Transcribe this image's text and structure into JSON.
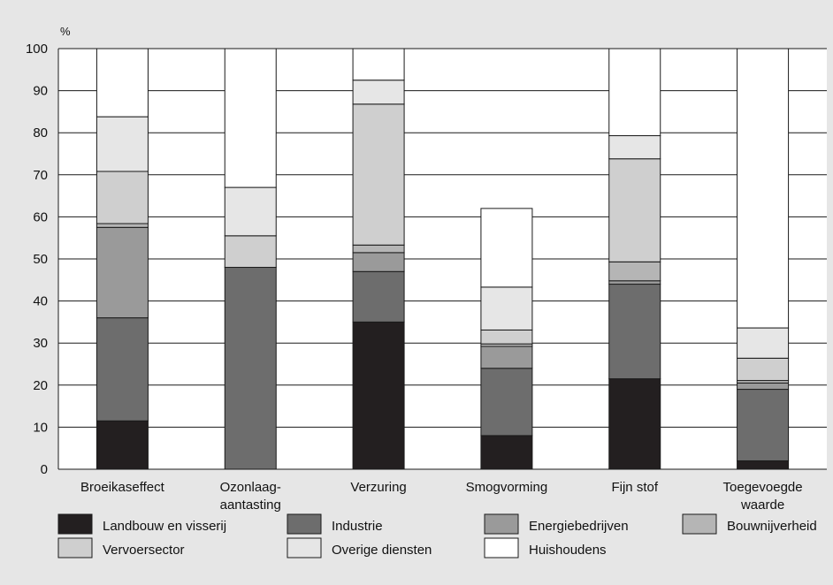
{
  "chart_data": {
    "type": "bar",
    "stacked": true,
    "unit_label": "%",
    "ylim": [
      0,
      100
    ],
    "yticks": [
      0,
      10,
      20,
      30,
      40,
      50,
      60,
      70,
      80,
      90,
      100
    ],
    "grid": "horizontal",
    "legend_position": "bottom",
    "categories": [
      [
        "Broeikaseffect"
      ],
      [
        "Ozonlaag-",
        "aantasting"
      ],
      [
        "Verzuring"
      ],
      [
        "Smogvorming"
      ],
      [
        "Fijn stof"
      ],
      [
        "Toegevoegde",
        "waarde"
      ]
    ],
    "series": [
      {
        "name": "Landbouw en visserij",
        "color": "#231f20",
        "values": [
          11.5,
          0,
          35,
          8,
          21.5,
          2
        ]
      },
      {
        "name": "Industrie",
        "color": "#6d6d6d",
        "values": [
          24.5,
          48,
          12,
          16,
          22.5,
          17
        ]
      },
      {
        "name": "Energiebedrijven",
        "color": "#9a9a9a",
        "values": [
          21.5,
          0,
          4.5,
          5.2,
          0.8,
          1.5
        ]
      },
      {
        "name": "Bouwnijverheid",
        "color": "#b5b5b5",
        "values": [
          0.9,
          0,
          1.8,
          0.6,
          4.5,
          0.6
        ]
      },
      {
        "name": "Vervoersector",
        "color": "#cfcfcf",
        "values": [
          12.4,
          7.5,
          33.5,
          3.3,
          24.5,
          5.3
        ]
      },
      {
        "name": "Overige diensten",
        "color": "#e6e6e6",
        "values": [
          13,
          11.5,
          5.7,
          10.2,
          5.5,
          7.2
        ]
      },
      {
        "name": "Huishoudens",
        "color": "#ffffff",
        "values": [
          16.2,
          33,
          7.5,
          18.7,
          20.7,
          66.4
        ]
      }
    ],
    "legend_rows": [
      [
        "Landbouw en visserij",
        "Industrie",
        "Energiebedrijven",
        "Bouwnijverheid"
      ],
      [
        "Vervoersector",
        "Overige diensten",
        "Huishoudens"
      ]
    ]
  }
}
